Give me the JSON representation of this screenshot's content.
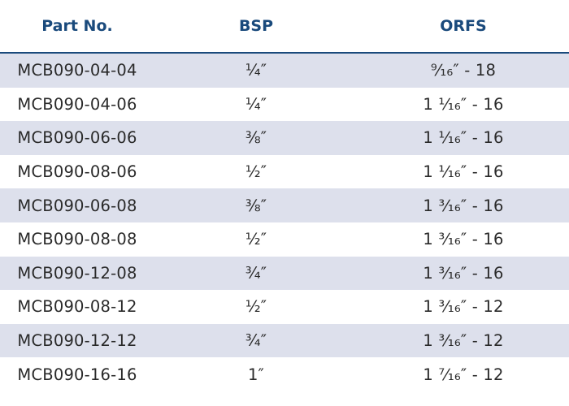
{
  "table": {
    "columns": [
      "Part No.",
      "BSP",
      "ORFS"
    ],
    "rows": [
      [
        "MCB090-04-04",
        "¼″",
        "⁹⁄₁₆″ - 18"
      ],
      [
        "MCB090-04-06",
        "¼″",
        "1 ¹⁄₁₆″ - 16"
      ],
      [
        "MCB090-06-06",
        "⅜″",
        "1 ¹⁄₁₆″ - 16"
      ],
      [
        "MCB090-08-06",
        "½″",
        "1 ¹⁄₁₆″ - 16"
      ],
      [
        "MCB090-06-08",
        "⅜″",
        "1 ³⁄₁₆″ - 16"
      ],
      [
        "MCB090-08-08",
        "½″",
        "1 ³⁄₁₆″ - 16"
      ],
      [
        "MCB090-12-08",
        "¾″",
        "1 ³⁄₁₆″ - 16"
      ],
      [
        "MCB090-08-12",
        "½″",
        "1 ³⁄₁₆″ - 12"
      ],
      [
        "MCB090-12-12",
        "¾″",
        "1 ³⁄₁₆″ - 12"
      ],
      [
        "MCB090-16-16",
        "1″",
        "1 ⁷⁄₁₆″ - 12"
      ]
    ]
  },
  "colors": {
    "header_text": "#1a4a7c",
    "header_rule": "#1a4a7c",
    "stripe": "#dde0ec",
    "body_text": "#2a2a2a"
  }
}
